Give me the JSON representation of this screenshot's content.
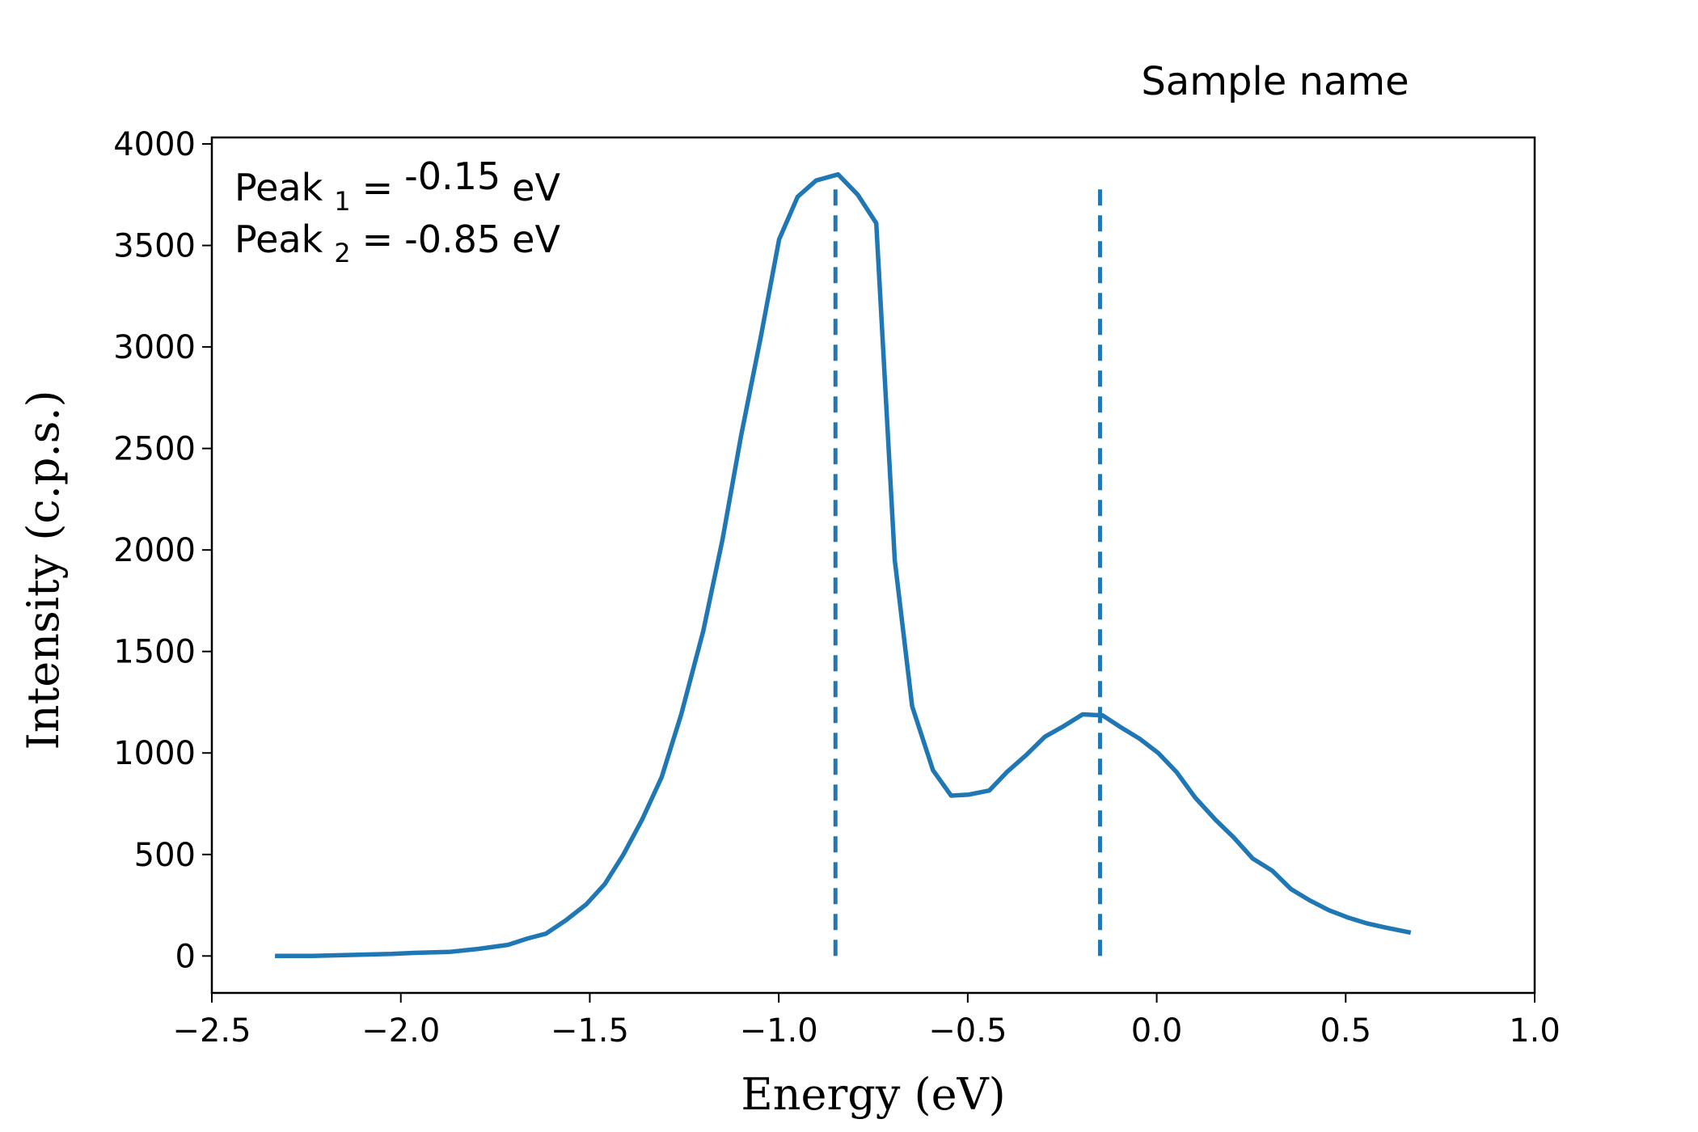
{
  "chart_data": {
    "type": "line",
    "title": "Sample name",
    "xlabel": "Energy (eV)",
    "ylabel": "Intensity (c.p.s.)",
    "color": "#1f77b4",
    "x": [
      -2.333,
      -2.235,
      -2.14,
      -2.025,
      -1.967,
      -1.872,
      -1.794,
      -1.716,
      -1.667,
      -1.616,
      -1.564,
      -1.509,
      -1.46,
      -1.411,
      -1.362,
      -1.31,
      -1.258,
      -1.2,
      -1.149,
      -1.1,
      -1.048,
      -0.999,
      -0.95,
      -0.901,
      -0.843,
      -0.791,
      -0.742,
      -0.693,
      -0.647,
      -0.592,
      -0.544,
      -0.497,
      -0.443,
      -0.397,
      -0.345,
      -0.296,
      -0.248,
      -0.196,
      -0.143,
      -0.098,
      -0.045,
      0.004,
      0.053,
      0.102,
      0.156,
      0.203,
      0.254,
      0.306,
      0.355,
      0.404,
      0.456,
      0.505,
      0.557,
      0.606,
      0.672
    ],
    "values": [
      0,
      0,
      5,
      10,
      15,
      20,
      35,
      55,
      85,
      110,
      175,
      255,
      355,
      500,
      670,
      880,
      1190,
      1600,
      2050,
      2560,
      3045,
      3530,
      3740,
      3820,
      3850,
      3750,
      3610,
      1950,
      1230,
      915,
      790,
      795,
      815,
      905,
      990,
      1080,
      1130,
      1190,
      1185,
      1130,
      1070,
      1000,
      905,
      780,
      670,
      585,
      480,
      420,
      330,
      275,
      225,
      190,
      160,
      140,
      115
    ],
    "peaks": [
      {
        "label": "Peak",
        "subscript": "1",
        "operator": "=",
        "energy": -0.15,
        "unit": "eV"
      },
      {
        "label": "Peak",
        "subscript": "2",
        "operator": "=",
        "energy": -0.85,
        "unit": "eV"
      }
    ],
    "peak_line_range": [
      0,
      3820
    ],
    "xlim": [
      -2.5,
      1.0
    ],
    "xticks": [
      {
        "value": -2.5,
        "label": "−2.5"
      },
      {
        "value": -2.0,
        "label": "−2.0"
      },
      {
        "value": -1.5,
        "label": "−1.5"
      },
      {
        "value": -1.0,
        "label": "−1.0"
      },
      {
        "value": -0.5,
        "label": "−0.5"
      },
      {
        "value": 0.0,
        "label": "0.0"
      },
      {
        "value": 0.5,
        "label": "0.5"
      },
      {
        "value": 1.0,
        "label": "1.0"
      }
    ],
    "ylim": [
      -182,
      4032
    ],
    "yticks": [
      0,
      500,
      1000,
      1500,
      2000,
      2500,
      3000,
      3500,
      4000
    ],
    "grid": false
  }
}
